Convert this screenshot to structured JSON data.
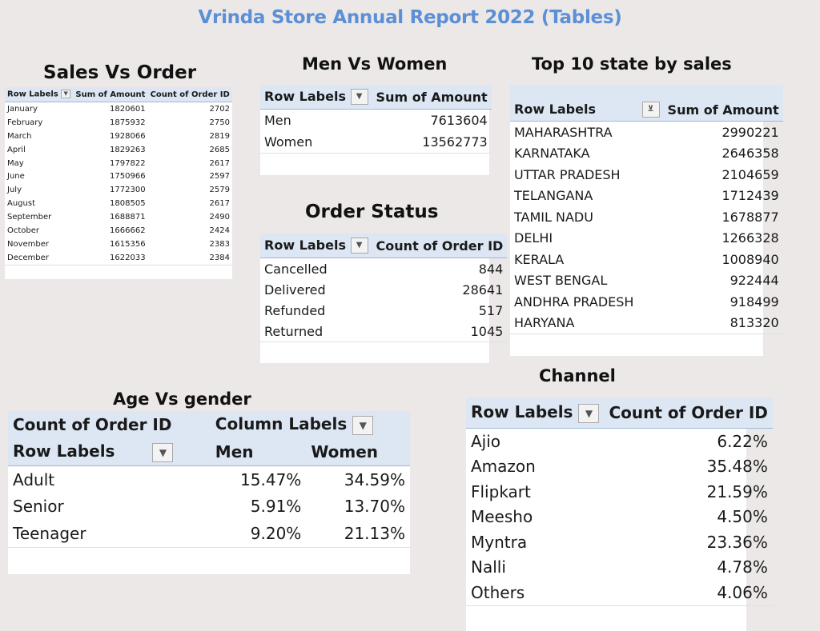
{
  "report_title": "Vrinda Store Annual Report 2022 (Tables)",
  "sales_vs_order": {
    "heading": "Sales Vs Order",
    "headers": [
      "Row Labels",
      "Sum of Amount",
      "Count of Order ID"
    ],
    "rows": [
      [
        "January",
        "1820601",
        "2702"
      ],
      [
        "February",
        "1875932",
        "2750"
      ],
      [
        "March",
        "1928066",
        "2819"
      ],
      [
        "April",
        "1829263",
        "2685"
      ],
      [
        "May",
        "1797822",
        "2617"
      ],
      [
        "June",
        "1750966",
        "2597"
      ],
      [
        "July",
        "1772300",
        "2579"
      ],
      [
        "August",
        "1808505",
        "2617"
      ],
      [
        "September",
        "1688871",
        "2490"
      ],
      [
        "October",
        "1666662",
        "2424"
      ],
      [
        "November",
        "1615356",
        "2383"
      ],
      [
        "December",
        "1622033",
        "2384"
      ]
    ]
  },
  "men_vs_women": {
    "heading": "Men Vs Women",
    "headers": [
      "Row Labels",
      "Sum of Amount"
    ],
    "rows": [
      [
        "Men",
        "7613604"
      ],
      [
        "Women",
        "13562773"
      ]
    ]
  },
  "order_status": {
    "heading": "Order Status",
    "headers": [
      "Row Labels",
      "Count of Order ID"
    ],
    "rows": [
      [
        "Cancelled",
        "844"
      ],
      [
        "Delivered",
        "28641"
      ],
      [
        "Refunded",
        "517"
      ],
      [
        "Returned",
        "1045"
      ]
    ]
  },
  "top_states": {
    "heading": "Top 10 state by sales",
    "headers": [
      "Row Labels",
      "Sum of Amount"
    ],
    "rows": [
      [
        "MAHARASHTRA",
        "2990221"
      ],
      [
        "KARNATAKA",
        "2646358"
      ],
      [
        "UTTAR PRADESH",
        "2104659"
      ],
      [
        "TELANGANA",
        "1712439"
      ],
      [
        "TAMIL NADU",
        "1678877"
      ],
      [
        "DELHI",
        "1266328"
      ],
      [
        "KERALA",
        "1008940"
      ],
      [
        "WEST BENGAL",
        "922444"
      ],
      [
        "ANDHRA PRADESH",
        "918499"
      ],
      [
        "HARYANA",
        "813320"
      ]
    ]
  },
  "age_vs_gender": {
    "heading": "Age Vs gender",
    "value_header": "Count of Order ID",
    "column_labels_header": "Column Labels",
    "row_labels_header": "Row Labels",
    "columns": [
      "Men",
      "Women"
    ],
    "rows": [
      [
        "Adult",
        "15.47%",
        "34.59%"
      ],
      [
        "Senior",
        "5.91%",
        "13.70%"
      ],
      [
        "Teenager",
        "9.20%",
        "21.13%"
      ]
    ]
  },
  "channel": {
    "heading": "Channel",
    "headers": [
      "Row Labels",
      "Count of Order ID"
    ],
    "rows": [
      [
        "Ajio",
        "6.22%"
      ],
      [
        "Amazon",
        "35.48%"
      ],
      [
        "Flipkart",
        "21.59%"
      ],
      [
        "Meesho",
        "4.50%"
      ],
      [
        "Myntra",
        "23.36%"
      ],
      [
        "Nalli",
        "4.78%"
      ],
      [
        "Others",
        "4.06%"
      ]
    ]
  },
  "icons": {
    "dropdown": "dropdown-arrow-icon",
    "filter": "filter-dropdown-icon"
  }
}
